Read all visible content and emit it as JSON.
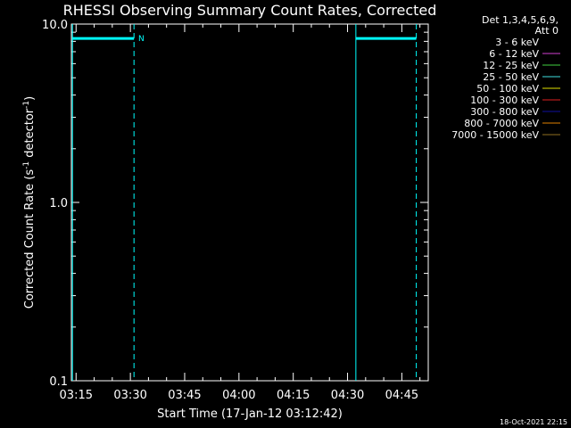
{
  "chart_data": {
    "type": "line",
    "title": "RHESSI Observing Summary Count Rates, Corrected",
    "xlabel": "Start Time (17-Jan-12 03:12:42)",
    "ylabel_main": "Corrected Count Rate (s",
    "ylabel_sup1": "-1",
    "ylabel_mid": " detector",
    "ylabel_sup2": "-1",
    "ylabel_end": ")",
    "y_scale": "log",
    "ylim": [
      0.1,
      10.0
    ],
    "y_ticks": [
      {
        "value": 0.1,
        "label": "0.1"
      },
      {
        "value": 1.0,
        "label": "1.0"
      },
      {
        "value": 10.0,
        "label": "10.0"
      }
    ],
    "xlim_minutes": [
      193.7,
      292.3
    ],
    "x_ticks": [
      {
        "minute": 195,
        "label": "03:15"
      },
      {
        "minute": 210,
        "label": "03:30"
      },
      {
        "minute": 225,
        "label": "03:45"
      },
      {
        "minute": 240,
        "label": "04:00"
      },
      {
        "minute": 255,
        "label": "04:15"
      },
      {
        "minute": 270,
        "label": "04:30"
      },
      {
        "minute": 285,
        "label": "04:45"
      }
    ],
    "grid": false,
    "legend": {
      "placement": "top-right",
      "header1": "Det 1,3,4,5,6,9,",
      "header2": "Att 0",
      "entries": [
        {
          "label": "3 - 6 keV",
          "color": "#000000"
        },
        {
          "label": "6 - 12 keV",
          "color": "#d040d0"
        },
        {
          "label": "12 - 25 keV",
          "color": "#40d040"
        },
        {
          "label": "25 - 50 keV",
          "color": "#40e0e0"
        },
        {
          "label": "50 - 100 keV",
          "color": "#e0e000"
        },
        {
          "label": "100 - 300 keV",
          "color": "#e02020"
        },
        {
          "label": "300 - 800 keV",
          "color": "#1010a0"
        },
        {
          "label": "800 - 7000 keV",
          "color": "#e08000"
        },
        {
          "label": "7000 - 15000 keV",
          "color": "#907020"
        }
      ]
    },
    "series": [
      {
        "name": "25 - 50 keV",
        "color": "#00ffff",
        "segments": [
          {
            "x": [
              194.0,
              211.0
            ],
            "y": [
              8.3,
              8.3
            ]
          },
          {
            "x": [
              272.3,
              289.0
            ],
            "y": [
              8.3,
              8.3
            ]
          }
        ]
      }
    ],
    "markers": [
      {
        "minute": 194.0,
        "style": "solid",
        "color": "#00ffff"
      },
      {
        "minute": 211.0,
        "style": "dashed",
        "color": "#00ffff"
      },
      {
        "minute": 272.3,
        "style": "solid",
        "color": "#00ffff"
      },
      {
        "minute": 289.0,
        "style": "dashed",
        "color": "#00ffff"
      }
    ],
    "annotations": [
      {
        "text": "N",
        "minute": 212.2,
        "value": 8.3,
        "color": "#00ffff"
      }
    ]
  },
  "footer": {
    "timestamp": "18-Oct-2021 22:15"
  }
}
